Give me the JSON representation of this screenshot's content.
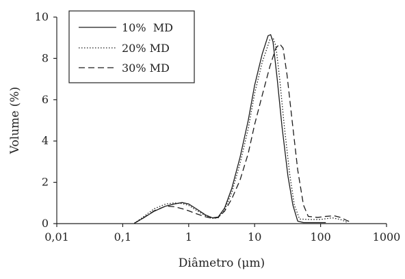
{
  "chart_data": {
    "type": "line",
    "xlabel": "Diâmetro (μm)",
    "ylabel": "Volume (%)",
    "x_scale": "log",
    "xlim": [
      0.01,
      1000
    ],
    "ylim": [
      0,
      10
    ],
    "x_ticks": [
      0.01,
      0.1,
      1,
      10,
      100,
      1000
    ],
    "x_tick_labels": [
      "0,01",
      "0,1",
      "1",
      "10",
      "100",
      "1000"
    ],
    "y_ticks": [
      0,
      2,
      4,
      6,
      8,
      10
    ],
    "y_tick_labels": [
      "0",
      "2",
      "4",
      "6",
      "8",
      "10"
    ],
    "grid": false,
    "legend_position": "top-left",
    "series": [
      {
        "name": "10%  MD",
        "dash": "solid",
        "color": "#1a1a1a",
        "points": [
          [
            0.15,
            0.02
          ],
          [
            0.2,
            0.25
          ],
          [
            0.3,
            0.6
          ],
          [
            0.45,
            0.85
          ],
          [
            0.6,
            0.95
          ],
          [
            0.8,
            1.02
          ],
          [
            1.0,
            0.95
          ],
          [
            1.3,
            0.72
          ],
          [
            1.8,
            0.42
          ],
          [
            2.3,
            0.28
          ],
          [
            2.8,
            0.32
          ],
          [
            3.5,
            0.75
          ],
          [
            4.5,
            1.7
          ],
          [
            6,
            3.2
          ],
          [
            8,
            5.0
          ],
          [
            10,
            6.7
          ],
          [
            13,
            8.2
          ],
          [
            16,
            9.1
          ],
          [
            17.5,
            9.15
          ],
          [
            19,
            8.8
          ],
          [
            22,
            7.0
          ],
          [
            26,
            4.7
          ],
          [
            32,
            2.3
          ],
          [
            38,
            0.9
          ],
          [
            45,
            0.12
          ],
          [
            55,
            0.05
          ],
          [
            100,
            0.05
          ],
          [
            120,
            0.05
          ]
        ]
      },
      {
        "name": "20% MD",
        "dash": "dotted",
        "color": "#1a1a1a",
        "points": [
          [
            0.15,
            0.02
          ],
          [
            0.2,
            0.3
          ],
          [
            0.3,
            0.72
          ],
          [
            0.45,
            0.95
          ],
          [
            0.6,
            1.0
          ],
          [
            0.8,
            0.97
          ],
          [
            1.0,
            0.88
          ],
          [
            1.3,
            0.65
          ],
          [
            1.8,
            0.38
          ],
          [
            2.3,
            0.25
          ],
          [
            2.8,
            0.28
          ],
          [
            3.5,
            0.65
          ],
          [
            4.5,
            1.5
          ],
          [
            6,
            2.9
          ],
          [
            8,
            4.6
          ],
          [
            10,
            6.3
          ],
          [
            13,
            7.8
          ],
          [
            17,
            8.9
          ],
          [
            19,
            9.0
          ],
          [
            21,
            8.6
          ],
          [
            24,
            7.0
          ],
          [
            28,
            4.8
          ],
          [
            34,
            2.4
          ],
          [
            40,
            0.9
          ],
          [
            48,
            0.22
          ],
          [
            70,
            0.2
          ],
          [
            100,
            0.2
          ],
          [
            150,
            0.28
          ],
          [
            200,
            0.2
          ],
          [
            260,
            0.05
          ]
        ]
      },
      {
        "name": "30% MD",
        "dash": "dashed",
        "color": "#1a1a1a",
        "points": [
          [
            0.15,
            0.02
          ],
          [
            0.2,
            0.25
          ],
          [
            0.3,
            0.62
          ],
          [
            0.45,
            0.85
          ],
          [
            0.6,
            0.82
          ],
          [
            0.8,
            0.72
          ],
          [
            1.0,
            0.62
          ],
          [
            1.3,
            0.48
          ],
          [
            1.8,
            0.33
          ],
          [
            2.3,
            0.25
          ],
          [
            2.8,
            0.3
          ],
          [
            3.5,
            0.6
          ],
          [
            4.5,
            1.2
          ],
          [
            6,
            2.1
          ],
          [
            8,
            3.4
          ],
          [
            10,
            4.8
          ],
          [
            13,
            6.2
          ],
          [
            17,
            7.6
          ],
          [
            21,
            8.5
          ],
          [
            24,
            8.7
          ],
          [
            27,
            8.5
          ],
          [
            31,
            7.2
          ],
          [
            37,
            5.0
          ],
          [
            45,
            2.6
          ],
          [
            55,
            0.9
          ],
          [
            65,
            0.35
          ],
          [
            90,
            0.3
          ],
          [
            120,
            0.35
          ],
          [
            160,
            0.38
          ],
          [
            200,
            0.3
          ],
          [
            250,
            0.15
          ],
          [
            300,
            0.05
          ]
        ]
      }
    ]
  }
}
